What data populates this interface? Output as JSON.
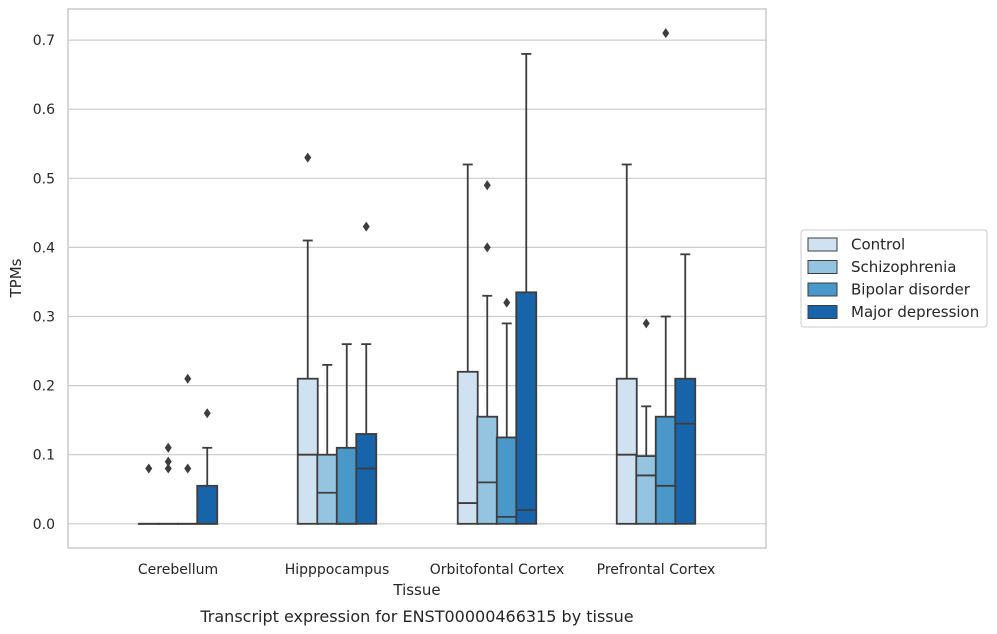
{
  "caption": "Transcript expression for ENST00000466315 by tissue",
  "chart_data": {
    "type": "boxplot",
    "xlabel": "Tissue",
    "ylabel": "TPMs",
    "ylim": [
      -0.035,
      0.745
    ],
    "yticks": [
      0.0,
      0.1,
      0.2,
      0.3,
      0.4,
      0.5,
      0.6,
      0.7
    ],
    "ytick_labels": [
      "0.0",
      "0.1",
      "0.2",
      "0.3",
      "0.4",
      "0.5",
      "0.6",
      "0.7"
    ],
    "grid": "horizontal",
    "legend_position": "right-center",
    "categories": [
      "Cerebellum",
      "Hipppocampus",
      "Orbitofontal Cortex",
      "Prefrontal Cortex"
    ],
    "series": [
      {
        "name": "Control",
        "color": "#d0e1f2",
        "boxes": [
          {
            "whislo": 0.0,
            "q1": 0.0,
            "med": 0.0,
            "q3": 0.0,
            "whishi": 0.0,
            "fliers": [
              0.08
            ]
          },
          {
            "whislo": 0.0,
            "q1": 0.0,
            "med": 0.1,
            "q3": 0.21,
            "whishi": 0.41,
            "fliers": [
              0.53
            ]
          },
          {
            "whislo": 0.0,
            "q1": 0.0,
            "med": 0.03,
            "q3": 0.22,
            "whishi": 0.52,
            "fliers": []
          },
          {
            "whislo": 0.0,
            "q1": 0.0,
            "med": 0.1,
            "q3": 0.21,
            "whishi": 0.52,
            "fliers": []
          }
        ]
      },
      {
        "name": "Schizophrenia",
        "color": "#94c4df",
        "boxes": [
          {
            "whislo": 0.0,
            "q1": 0.0,
            "med": 0.0,
            "q3": 0.0,
            "whishi": 0.0,
            "fliers": [
              0.08,
              0.09,
              0.11
            ]
          },
          {
            "whislo": 0.0,
            "q1": 0.0,
            "med": 0.045,
            "q3": 0.1,
            "whishi": 0.23,
            "fliers": []
          },
          {
            "whislo": 0.0,
            "q1": 0.0,
            "med": 0.06,
            "q3": 0.155,
            "whishi": 0.33,
            "fliers": [
              0.4,
              0.49
            ]
          },
          {
            "whislo": 0.0,
            "q1": 0.0,
            "med": 0.07,
            "q3": 0.098,
            "whishi": 0.17,
            "fliers": [
              0.29
            ]
          }
        ]
      },
      {
        "name": "Bipolar disorder",
        "color": "#4a98c9",
        "boxes": [
          {
            "whislo": 0.0,
            "q1": 0.0,
            "med": 0.0,
            "q3": 0.0,
            "whishi": 0.0,
            "fliers": [
              0.08,
              0.21
            ]
          },
          {
            "whislo": 0.0,
            "q1": 0.0,
            "med": 0.0,
            "q3": 0.11,
            "whishi": 0.26,
            "fliers": []
          },
          {
            "whislo": 0.0,
            "q1": 0.0,
            "med": 0.01,
            "q3": 0.125,
            "whishi": 0.29,
            "fliers": [
              0.32
            ]
          },
          {
            "whislo": 0.0,
            "q1": 0.0,
            "med": 0.055,
            "q3": 0.155,
            "whishi": 0.3,
            "fliers": [
              0.71
            ]
          }
        ]
      },
      {
        "name": "Major depression",
        "color": "#1764ab",
        "boxes": [
          {
            "whislo": 0.0,
            "q1": 0.0,
            "med": 0.0,
            "q3": 0.055,
            "whishi": 0.11,
            "fliers": [
              0.16
            ]
          },
          {
            "whislo": 0.0,
            "q1": 0.0,
            "med": 0.08,
            "q3": 0.13,
            "whishi": 0.26,
            "fliers": [
              0.43
            ]
          },
          {
            "whislo": 0.0,
            "q1": 0.0,
            "med": 0.02,
            "q3": 0.335,
            "whishi": 0.68,
            "fliers": []
          },
          {
            "whislo": 0.0,
            "q1": 0.0,
            "med": 0.145,
            "q3": 0.21,
            "whishi": 0.39,
            "fliers": []
          }
        ]
      }
    ]
  }
}
